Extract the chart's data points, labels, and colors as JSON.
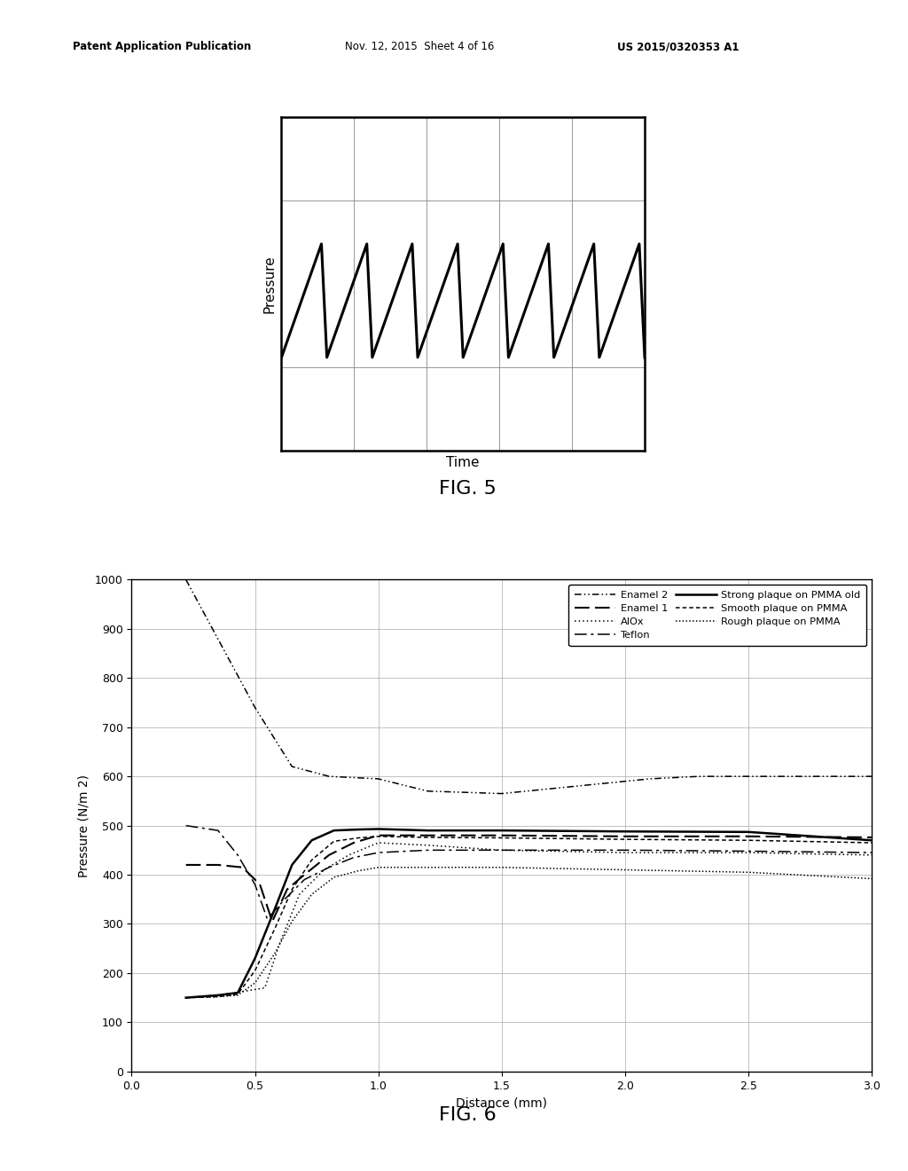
{
  "header_left": "Patent Application Publication",
  "header_mid": "Nov. 12, 2015  Sheet 4 of 16",
  "header_right": "US 2015/0320353 A1",
  "fig5_title": "FIG. 5",
  "fig5_xlabel": "Time",
  "fig5_ylabel": "Pressure",
  "fig6_title": "FIG. 6",
  "fig6_xlabel": "Distance (mm)",
  "fig6_ylabel": "Pressure (N/m 2)",
  "fig6_xlim": [
    0,
    3
  ],
  "fig6_ylim": [
    0,
    1000
  ],
  "fig6_xticks": [
    0,
    0.5,
    1.0,
    1.5,
    2.0,
    2.5,
    3.0
  ],
  "fig6_yticks": [
    0,
    100,
    200,
    300,
    400,
    500,
    600,
    700,
    800,
    900,
    1000
  ],
  "background_color": "#ffffff",
  "enamel2_x": [
    0.22,
    0.5,
    0.65,
    0.8,
    1.0,
    1.2,
    1.5,
    1.7,
    1.9,
    2.1,
    2.3,
    2.5,
    2.75,
    3.0
  ],
  "enamel2_y": [
    1000,
    740,
    620,
    600,
    595,
    570,
    565,
    575,
    585,
    595,
    600,
    600,
    600,
    600
  ],
  "enamel1_x": [
    0.22,
    0.35,
    0.45,
    0.52,
    0.57,
    0.63,
    0.7,
    0.8,
    0.9,
    1.0,
    1.2,
    1.5,
    2.0,
    2.5,
    3.0
  ],
  "enamel1_y": [
    420,
    420,
    415,
    380,
    305,
    370,
    400,
    440,
    465,
    480,
    480,
    480,
    478,
    478,
    476
  ],
  "alox_x": [
    0.22,
    0.35,
    0.42,
    0.48,
    0.54,
    0.6,
    0.68,
    0.78,
    0.88,
    1.0,
    1.2,
    1.5,
    2.0,
    2.5,
    3.0
  ],
  "alox_y": [
    150,
    155,
    160,
    165,
    170,
    260,
    360,
    410,
    440,
    465,
    460,
    450,
    445,
    445,
    440
  ],
  "teflon_x": [
    0.22,
    0.35,
    0.43,
    0.5,
    0.55,
    0.62,
    0.7,
    0.8,
    0.9,
    1.0,
    1.2,
    1.5,
    2.0,
    2.5,
    3.0
  ],
  "teflon_y": [
    500,
    490,
    440,
    380,
    310,
    350,
    390,
    415,
    435,
    445,
    450,
    450,
    450,
    448,
    445
  ],
  "strong_pmma_x": [
    0.22,
    0.35,
    0.43,
    0.5,
    0.58,
    0.65,
    0.73,
    0.82,
    0.92,
    1.0,
    1.2,
    1.5,
    2.0,
    2.5,
    3.0
  ],
  "strong_pmma_y": [
    150,
    155,
    160,
    230,
    330,
    420,
    470,
    490,
    492,
    493,
    490,
    490,
    488,
    487,
    470
  ],
  "smooth_pmma_x": [
    0.22,
    0.35,
    0.43,
    0.5,
    0.58,
    0.65,
    0.73,
    0.82,
    0.92,
    1.0,
    1.2,
    1.5,
    2.0,
    2.5,
    3.0
  ],
  "smooth_pmma_y": [
    150,
    152,
    157,
    205,
    290,
    370,
    430,
    468,
    475,
    478,
    476,
    475,
    472,
    470,
    465
  ],
  "rough_pmma_x": [
    0.22,
    0.35,
    0.43,
    0.5,
    0.58,
    0.65,
    0.73,
    0.82,
    0.92,
    1.0,
    1.2,
    1.5,
    2.0,
    2.5,
    3.0
  ],
  "rough_pmma_y": [
    150,
    152,
    155,
    180,
    240,
    305,
    360,
    395,
    408,
    415,
    415,
    415,
    410,
    405,
    392
  ]
}
